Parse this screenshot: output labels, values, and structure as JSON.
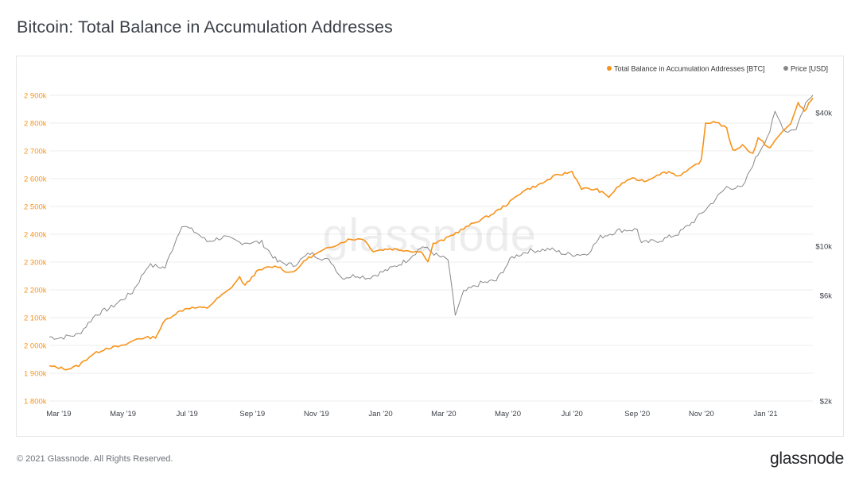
{
  "title": "Bitcoin: Total Balance in Accumulation Addresses",
  "footer": {
    "copyright": "© 2021 Glassnode. All Rights Reserved.",
    "brand": "glassnode"
  },
  "watermark": "glassnode",
  "colors": {
    "primary": "#f7931a",
    "secondary": "#888888",
    "grid": "#ececec",
    "axis_text": "#3b3f46"
  },
  "chart_data": {
    "type": "line",
    "title": "Bitcoin: Total Balance in Accumulation Addresses",
    "legend": {
      "placement": "top-right",
      "entries": [
        {
          "name": "Total Balance in Accumulation Addresses [BTC]",
          "color": "#f7931a"
        },
        {
          "name": "Price [USD]",
          "color": "#888888"
        }
      ]
    },
    "x_axis": {
      "range": [
        "2019-02-20",
        "2021-02-15"
      ],
      "tick_labels": [
        "Mar '19",
        "May '19",
        "Jul '19",
        "Sep '19",
        "Nov '19",
        "Jan '20",
        "Mar '20",
        "May '20",
        "Jul '20",
        "Sep '20",
        "Nov '20",
        "Jan '21"
      ],
      "tick_dates": [
        "2019-03-01",
        "2019-05-01",
        "2019-07-01",
        "2019-09-01",
        "2019-11-01",
        "2020-01-01",
        "2020-03-01",
        "2020-05-01",
        "2020-07-01",
        "2020-09-01",
        "2020-11-01",
        "2021-01-01"
      ]
    },
    "y_left": {
      "unit": "BTC",
      "range": [
        1800000,
        2900000
      ],
      "tick_values": [
        1800000,
        1900000,
        2000000,
        2100000,
        2200000,
        2300000,
        2400000,
        2500000,
        2600000,
        2700000,
        2800000,
        2900000
      ],
      "tick_labels": [
        "1 800k",
        "1 900k",
        "2 000k",
        "2 100k",
        "2 200k",
        "2 300k",
        "2 400k",
        "2 500k",
        "2 600k",
        "2 700k",
        "2 800k",
        "2 900k"
      ],
      "grid": true
    },
    "y_right": {
      "unit": "USD",
      "scale": "log",
      "range": [
        2000,
        48000
      ],
      "tick_values": [
        2000,
        6000,
        10000,
        40000
      ],
      "tick_labels": [
        "$2k",
        "$6k",
        "$10k",
        "$40k"
      ]
    },
    "series": [
      {
        "name": "Total Balance in Accumulation Addresses [BTC]",
        "axis": "left",
        "points": [
          [
            "2019-02-20",
            1925000
          ],
          [
            "2019-03-01",
            1920000
          ],
          [
            "2019-03-10",
            1915000
          ],
          [
            "2019-03-20",
            1928000
          ],
          [
            "2019-04-01",
            1965000
          ],
          [
            "2019-04-15",
            1990000
          ],
          [
            "2019-05-01",
            1998000
          ],
          [
            "2019-05-15",
            2025000
          ],
          [
            "2019-06-01",
            2030000
          ],
          [
            "2019-06-10",
            2090000
          ],
          [
            "2019-06-20",
            2115000
          ],
          [
            "2019-07-01",
            2135000
          ],
          [
            "2019-07-20",
            2135000
          ],
          [
            "2019-08-01",
            2175000
          ],
          [
            "2019-08-10",
            2200000
          ],
          [
            "2019-08-20",
            2245000
          ],
          [
            "2019-08-25",
            2215000
          ],
          [
            "2019-09-05",
            2265000
          ],
          [
            "2019-09-15",
            2280000
          ],
          [
            "2019-09-25",
            2285000
          ],
          [
            "2019-10-05",
            2262000
          ],
          [
            "2019-10-15",
            2275000
          ],
          [
            "2019-10-20",
            2305000
          ],
          [
            "2019-11-01",
            2330000
          ],
          [
            "2019-11-15",
            2355000
          ],
          [
            "2019-12-01",
            2380000
          ],
          [
            "2019-12-15",
            2385000
          ],
          [
            "2019-12-25",
            2340000
          ],
          [
            "2020-01-10",
            2348000
          ],
          [
            "2020-01-25",
            2342000
          ],
          [
            "2020-02-10",
            2335000
          ],
          [
            "2020-02-15",
            2300000
          ],
          [
            "2020-02-20",
            2365000
          ],
          [
            "2020-03-01",
            2380000
          ],
          [
            "2020-03-15",
            2410000
          ],
          [
            "2020-04-01",
            2445000
          ],
          [
            "2020-04-15",
            2470000
          ],
          [
            "2020-05-01",
            2510000
          ],
          [
            "2020-05-15",
            2555000
          ],
          [
            "2020-06-01",
            2580000
          ],
          [
            "2020-06-15",
            2610000
          ],
          [
            "2020-07-01",
            2625000
          ],
          [
            "2020-07-10",
            2565000
          ],
          [
            "2020-07-25",
            2560000
          ],
          [
            "2020-08-05",
            2535000
          ],
          [
            "2020-08-15",
            2575000
          ],
          [
            "2020-08-25",
            2600000
          ],
          [
            "2020-09-10",
            2592000
          ],
          [
            "2020-09-20",
            2615000
          ],
          [
            "2020-10-01",
            2625000
          ],
          [
            "2020-10-10",
            2610000
          ],
          [
            "2020-10-20",
            2630000
          ],
          [
            "2020-11-01",
            2665000
          ],
          [
            "2020-11-05",
            2800000
          ],
          [
            "2020-11-15",
            2805000
          ],
          [
            "2020-11-25",
            2780000
          ],
          [
            "2020-12-01",
            2700000
          ],
          [
            "2020-12-10",
            2720000
          ],
          [
            "2020-12-20",
            2690000
          ],
          [
            "2020-12-25",
            2745000
          ],
          [
            "2021-01-05",
            2710000
          ],
          [
            "2021-01-15",
            2760000
          ],
          [
            "2021-01-25",
            2800000
          ],
          [
            "2021-02-01",
            2870000
          ],
          [
            "2021-02-07",
            2845000
          ],
          [
            "2021-02-15",
            2890000
          ]
        ]
      },
      {
        "name": "Price [USD]",
        "axis": "right",
        "points": [
          [
            "2019-02-20",
            3900
          ],
          [
            "2019-03-01",
            3850
          ],
          [
            "2019-03-20",
            4000
          ],
          [
            "2019-04-05",
            4900
          ],
          [
            "2019-04-20",
            5300
          ],
          [
            "2019-05-10",
            6200
          ],
          [
            "2019-05-25",
            8200
          ],
          [
            "2019-06-10",
            8000
          ],
          [
            "2019-06-26",
            12500
          ],
          [
            "2019-07-10",
            11500
          ],
          [
            "2019-07-20",
            10500
          ],
          [
            "2019-08-05",
            11000
          ],
          [
            "2019-08-20",
            10400
          ],
          [
            "2019-09-10",
            10400
          ],
          [
            "2019-09-25",
            8500
          ],
          [
            "2019-10-10",
            8200
          ],
          [
            "2019-10-26",
            9300
          ],
          [
            "2019-11-15",
            8500
          ],
          [
            "2019-11-25",
            7200
          ],
          [
            "2019-12-10",
            7400
          ],
          [
            "2019-12-20",
            7200
          ],
          [
            "2020-01-10",
            7900
          ],
          [
            "2020-01-25",
            8600
          ],
          [
            "2020-02-10",
            10000
          ],
          [
            "2020-02-25",
            9000
          ],
          [
            "2020-03-05",
            8700
          ],
          [
            "2020-03-12",
            4900
          ],
          [
            "2020-03-20",
            6200
          ],
          [
            "2020-04-05",
            6800
          ],
          [
            "2020-04-20",
            7000
          ],
          [
            "2020-05-05",
            8900
          ],
          [
            "2020-05-20",
            9500
          ],
          [
            "2020-06-10",
            9700
          ],
          [
            "2020-06-25",
            9200
          ],
          [
            "2020-07-15",
            9200
          ],
          [
            "2020-07-28",
            11000
          ],
          [
            "2020-08-15",
            11800
          ],
          [
            "2020-09-01",
            11900
          ],
          [
            "2020-09-05",
            10300
          ],
          [
            "2020-09-25",
            10700
          ],
          [
            "2020-10-10",
            11400
          ],
          [
            "2020-10-25",
            13000
          ],
          [
            "2020-11-10",
            15500
          ],
          [
            "2020-11-25",
            18500
          ],
          [
            "2020-12-10",
            18300
          ],
          [
            "2020-12-20",
            23500
          ],
          [
            "2021-01-05",
            33000
          ],
          [
            "2021-01-10",
            40000
          ],
          [
            "2021-01-20",
            33000
          ],
          [
            "2021-01-30",
            34000
          ],
          [
            "2021-02-08",
            44000
          ],
          [
            "2021-02-15",
            48000
          ]
        ]
      }
    ]
  }
}
